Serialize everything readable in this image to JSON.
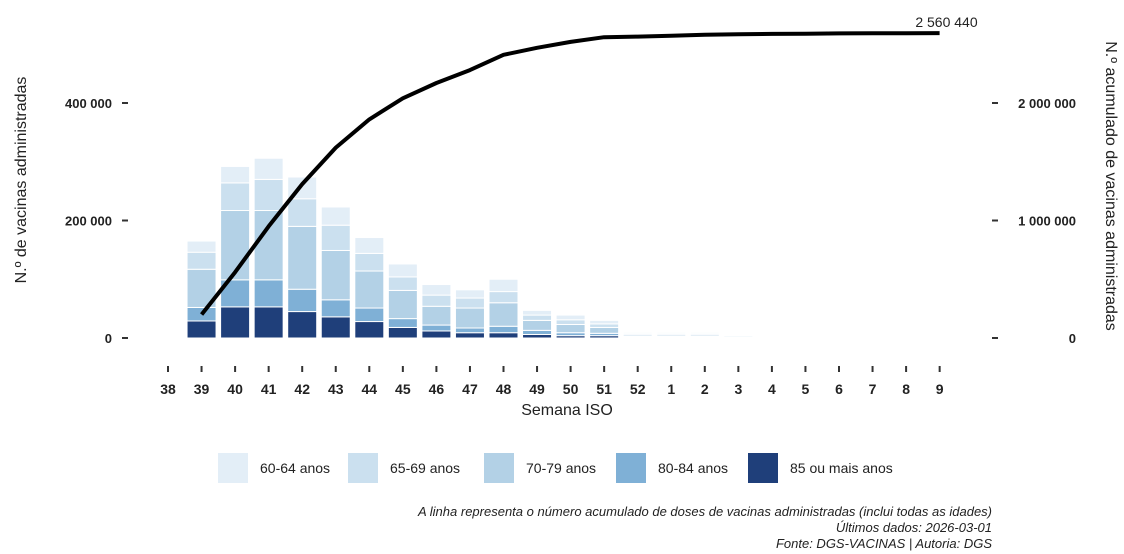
{
  "chart_data": {
    "type": "bar",
    "stacked": true,
    "xlabel": "Semana ISO",
    "ylabel_left": "N.º de vacinas administradas",
    "ylabel_right": "N.º acumulado de vacinas administradas",
    "ylim_left": [
      0,
      470000
    ],
    "ylim_right": [
      0,
      2520000
    ],
    "yticks_left": [
      0,
      200000,
      400000
    ],
    "yticks_right": [
      0,
      1000000,
      2000000
    ],
    "yticks_left_labels": [
      "0",
      "200 000",
      "400 000"
    ],
    "yticks_right_labels": [
      "0",
      "1 000 000",
      "2 000 000"
    ],
    "categories": [
      "38",
      "39",
      "40",
      "41",
      "42",
      "43",
      "44",
      "45",
      "46",
      "47",
      "48",
      "49",
      "50",
      "51",
      "52",
      "1",
      "2",
      "3",
      "4",
      "5",
      "6",
      "7",
      "8",
      "9"
    ],
    "series": [
      {
        "name": "85 ou mais anos",
        "color": "#1f3f7a",
        "values": [
          0,
          29000,
          53000,
          53000,
          45000,
          36000,
          28000,
          18000,
          12000,
          9000,
          9000,
          6000,
          4000,
          4000,
          1500,
          1500,
          1500,
          1000,
          700,
          500,
          400,
          300,
          300,
          200
        ]
      },
      {
        "name": "80-84 anos",
        "color": "#7fb0d6",
        "values": [
          0,
          23000,
          46000,
          46000,
          38000,
          29000,
          23000,
          15000,
          10000,
          8000,
          11000,
          7000,
          5000,
          4000,
          1500,
          1500,
          1500,
          1000,
          700,
          500,
          400,
          300,
          300,
          200
        ]
      },
      {
        "name": "70-79 anos",
        "color": "#b3d1e6",
        "values": [
          0,
          65000,
          118000,
          118000,
          107000,
          84000,
          63000,
          48000,
          32000,
          34000,
          40000,
          17000,
          14000,
          10000,
          2500,
          2500,
          2500,
          2000,
          1000,
          700,
          600,
          500,
          400,
          300
        ]
      },
      {
        "name": "65-69 anos",
        "color": "#cbe0ef",
        "values": [
          0,
          29000,
          47000,
          53000,
          47000,
          43000,
          30000,
          23000,
          19000,
          17000,
          19000,
          9000,
          8000,
          6000,
          2000,
          2000,
          2000,
          1500,
          800,
          600,
          500,
          400,
          300,
          300
        ]
      },
      {
        "name": "60-64 anos",
        "color": "#e3eef7",
        "values": [
          0,
          19000,
          28000,
          36000,
          37000,
          31000,
          27000,
          22000,
          18000,
          14000,
          21000,
          8000,
          8000,
          6000,
          2000,
          2000,
          2000,
          1500,
          800,
          600,
          500,
          400,
          300,
          300
        ]
      }
    ],
    "cumulative": {
      "start_index": 1,
      "values": [
        200000,
        560000,
        950000,
        1310000,
        1620000,
        1860000,
        2040000,
        2170000,
        2280000,
        2410000,
        2470000,
        2520000,
        2560000,
        2565000,
        2573000,
        2580000,
        2585000,
        2588000,
        2590000,
        2592000,
        2593000,
        2594000,
        2595000
      ],
      "end_label": "2 560 440",
      "color": "#000000"
    },
    "legend_position": "bottom",
    "grid": false
  },
  "notes": {
    "line1": "A linha representa o número acumulado de doses de vacinas administradas (inclui todas as idades)",
    "line2": "Últimos dados: 2026-03-01",
    "line3": "Fonte: DGS-VACINAS | Autoria: DGS"
  }
}
